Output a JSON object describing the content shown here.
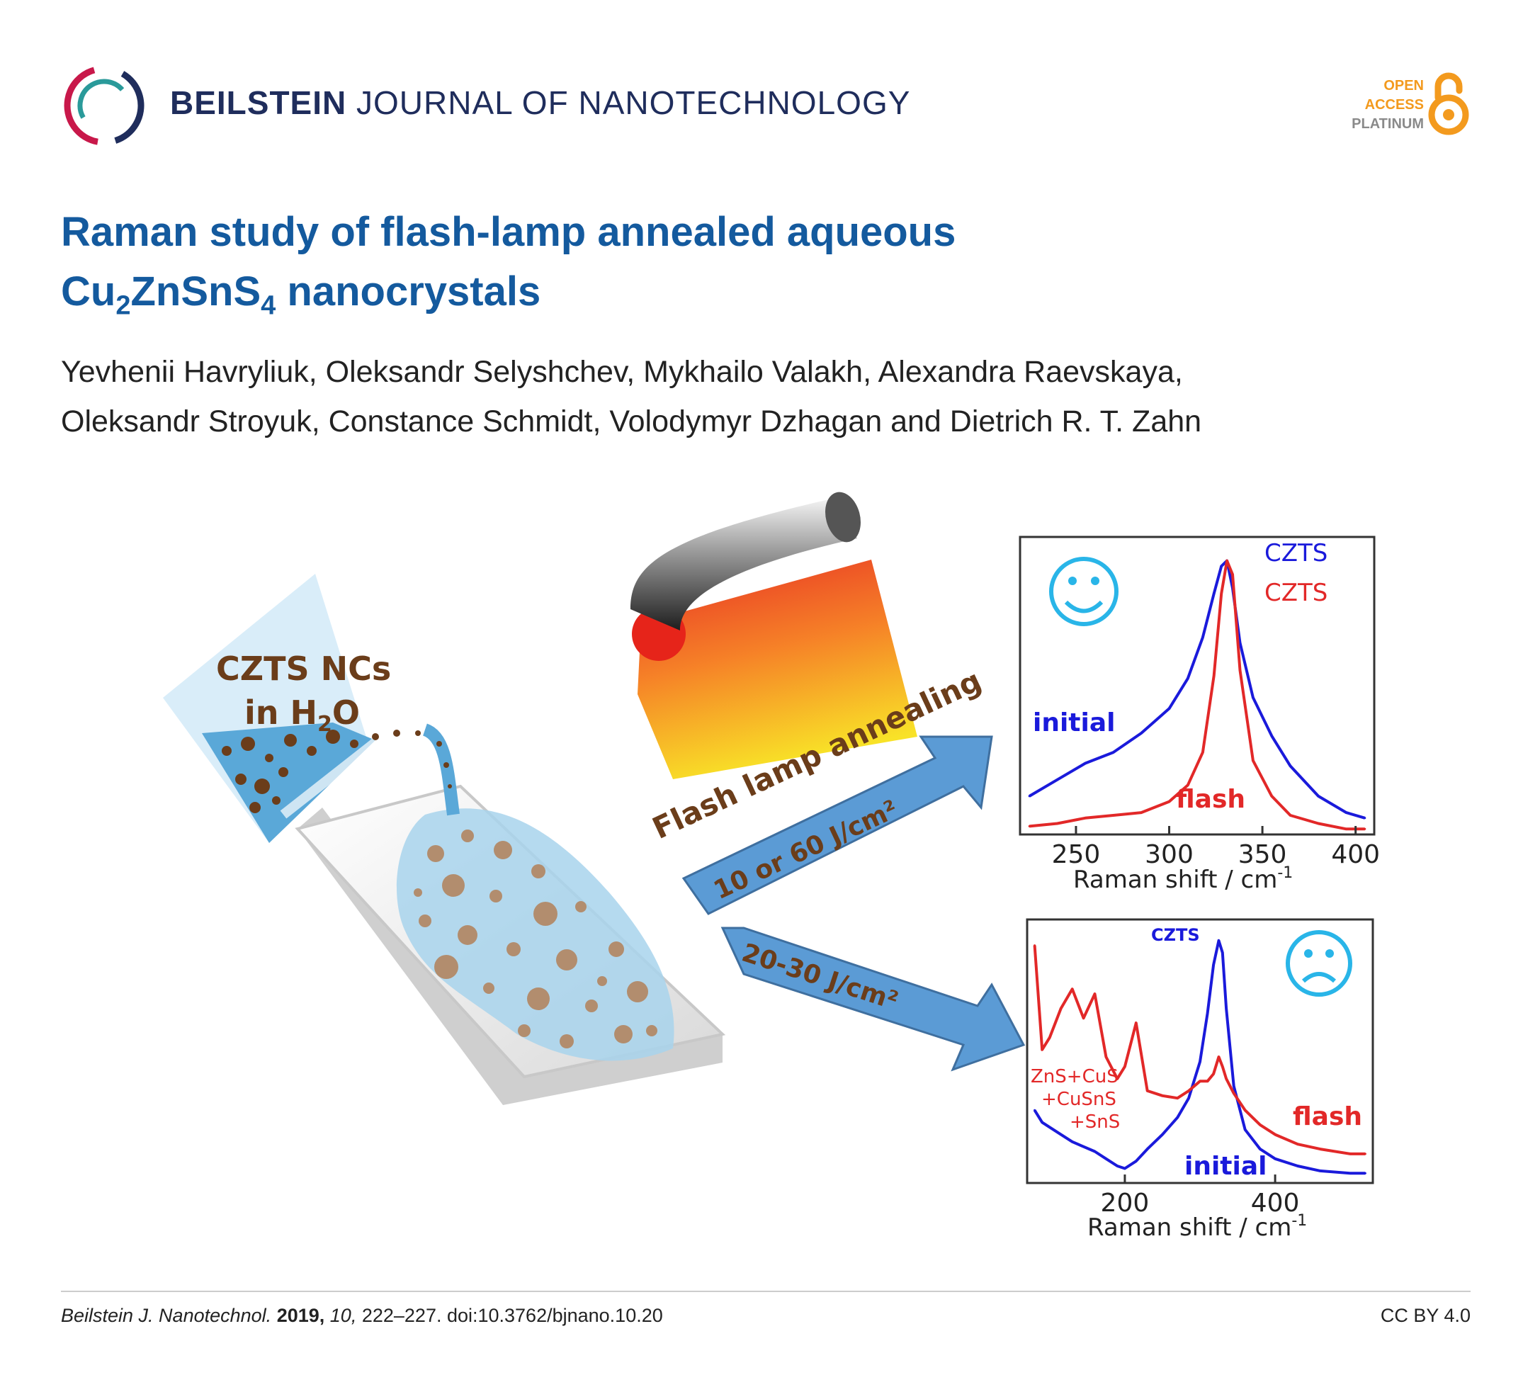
{
  "header": {
    "journal_bold": "BEILSTEIN",
    "journal_rest": "JOURNAL OF NANOTECHNOLOGY",
    "oa_line1": "OPEN",
    "oa_line2": "ACCESS",
    "oa_line3": "PLATINUM"
  },
  "title": {
    "line1": "Raman study of flash-lamp annealed aqueous",
    "line2_a": "Cu",
    "line2_sub1": "2",
    "line2_b": "ZnSnS",
    "line2_sub2": "4",
    "line2_c": " nanocrystals"
  },
  "authors": {
    "line1": "Yevhenii Havryliuk, Oleksandr Selyshchev, Mykhailo Valakh, Alexandra Raevskaya,",
    "line2": "Oleksandr Stroyuk, Constance Schmidt, Volodymyr Dzhagan and Dietrich R. T. Zahn"
  },
  "figure": {
    "beaker_label1": "CZTS  NCs",
    "beaker_label2_a": "in H",
    "beaker_label2_sub": "2",
    "beaker_label2_b": "O",
    "arrow_top_label": "10 or 60 J/cm²",
    "arrow_top_caption": "Flash lamp annealing",
    "arrow_bottom_label": "20-30 J/cm²"
  },
  "chart_data": [
    {
      "type": "line",
      "x": [
        225,
        240,
        255,
        270,
        285,
        300,
        310,
        318,
        324,
        328,
        331,
        334,
        338,
        345,
        355,
        365,
        380,
        395,
        405
      ],
      "series": [
        {
          "name": "initial",
          "color": "#1a1adb",
          "values": [
            0.14,
            0.2,
            0.26,
            0.3,
            0.37,
            0.46,
            0.57,
            0.72,
            0.88,
            0.98,
            1.0,
            0.9,
            0.7,
            0.5,
            0.36,
            0.25,
            0.14,
            0.08,
            0.06
          ]
        },
        {
          "name": "flash",
          "color": "#e22828",
          "values": [
            0.03,
            0.04,
            0.06,
            0.07,
            0.08,
            0.12,
            0.18,
            0.3,
            0.58,
            0.88,
            1.0,
            0.95,
            0.6,
            0.27,
            0.14,
            0.07,
            0.04,
            0.02,
            0.02
          ]
        }
      ],
      "xticks": [
        "250",
        "300",
        "350",
        "400"
      ],
      "xlabel": "Raman shift / cm",
      "xlabel_sup": "-1",
      "xlim": [
        220,
        410
      ],
      "annotations": [
        "CZTS",
        "CZTS",
        "initial",
        "flash"
      ],
      "face": "happy"
    },
    {
      "type": "line",
      "x": [
        80,
        90,
        100,
        115,
        130,
        145,
        160,
        175,
        190,
        200,
        215,
        230,
        250,
        270,
        285,
        300,
        310,
        318,
        325,
        330,
        335,
        345,
        360,
        380,
        400,
        430,
        460,
        500,
        520
      ],
      "series": [
        {
          "name": "initial",
          "color": "#1a1adb",
          "values": [
            0.3,
            0.25,
            0.23,
            0.2,
            0.17,
            0.15,
            0.13,
            0.1,
            0.07,
            0.06,
            0.09,
            0.14,
            0.2,
            0.27,
            0.35,
            0.5,
            0.7,
            0.9,
            1.0,
            0.95,
            0.72,
            0.4,
            0.22,
            0.14,
            0.1,
            0.07,
            0.05,
            0.04,
            0.04
          ]
        },
        {
          "name": "flash",
          "color": "#e22828",
          "values": [
            0.98,
            0.55,
            0.6,
            0.72,
            0.8,
            0.68,
            0.78,
            0.52,
            0.43,
            0.48,
            0.66,
            0.38,
            0.36,
            0.35,
            0.38,
            0.42,
            0.42,
            0.45,
            0.52,
            0.48,
            0.43,
            0.37,
            0.3,
            0.24,
            0.2,
            0.16,
            0.14,
            0.12,
            0.12
          ]
        }
      ],
      "xticks": [
        "200",
        "400"
      ],
      "xlabel": "Raman shift / cm",
      "xlabel_sup": "-1",
      "xlim": [
        70,
        530
      ],
      "annotations": [
        "CZTS",
        "ZnS+CuS",
        "+CuSnS",
        "+SnS",
        "flash",
        "initial"
      ],
      "face": "sad"
    }
  ],
  "footer": {
    "journal_abbrev": "Beilstein J. Nanotechnol.",
    "year": "2019,",
    "volume": "10,",
    "pages_doi": "222–227. doi:10.3762/bjnano.10.20",
    "license": "CC BY 4.0"
  }
}
